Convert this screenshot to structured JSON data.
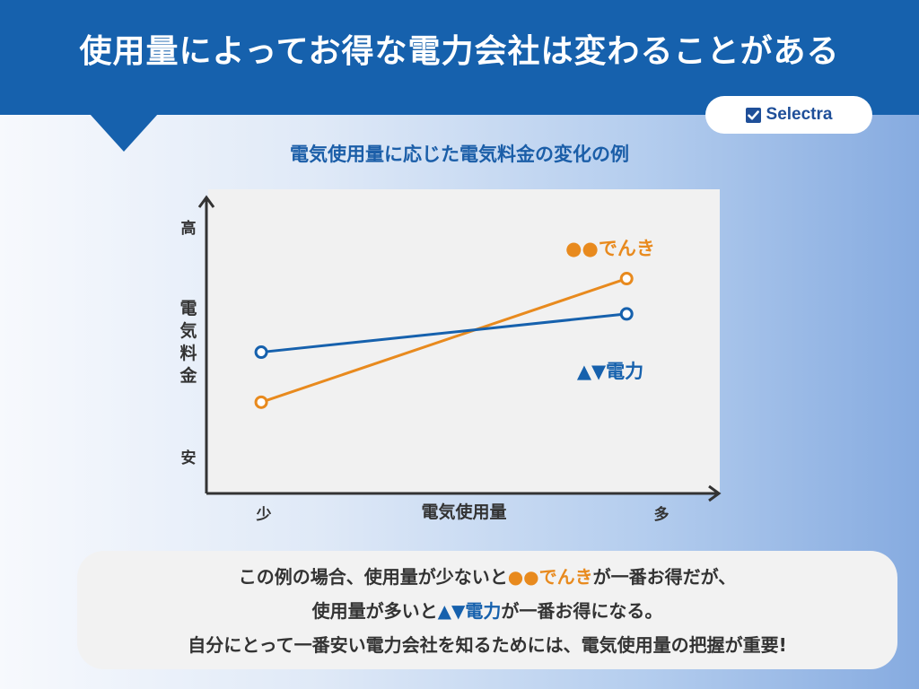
{
  "header": {
    "title": "使用量によってお得な電力会社は変わることがある"
  },
  "brand": {
    "name": "Selectra"
  },
  "chart_data": {
    "type": "line",
    "title": "電気使用量に応じた電気料金の変化の例",
    "xlabel": "電気使用量",
    "ylabel": "電気料金",
    "x_tick_labels": [
      "少",
      "多"
    ],
    "y_tick_labels": [
      "安",
      "高"
    ],
    "x": [
      0,
      1
    ],
    "xlim": [
      -0.15,
      1.25
    ],
    "ylim": [
      0,
      1
    ],
    "grid": false,
    "series": [
      {
        "name": "●●でんき",
        "color": "#e88a1e",
        "marker": "open-circle",
        "values": [
          0.31,
          0.73
        ]
      },
      {
        "name": "▲▼電力",
        "color": "#1661ad",
        "marker": "open-circle",
        "values": [
          0.48,
          0.61
        ]
      }
    ]
  },
  "note": {
    "line1_pre": "この例の場合、使用量が少ないと",
    "line1_hl": "●●でんき",
    "line1_post": "が一番お得だが、",
    "line2_pre": "使用量が多いと",
    "line2_hl": "▲▼電力",
    "line2_post": "が一番お得になる。",
    "line3": "自分にとって一番安い電力会社を知るためには、電気使用量の把握が重要!"
  }
}
